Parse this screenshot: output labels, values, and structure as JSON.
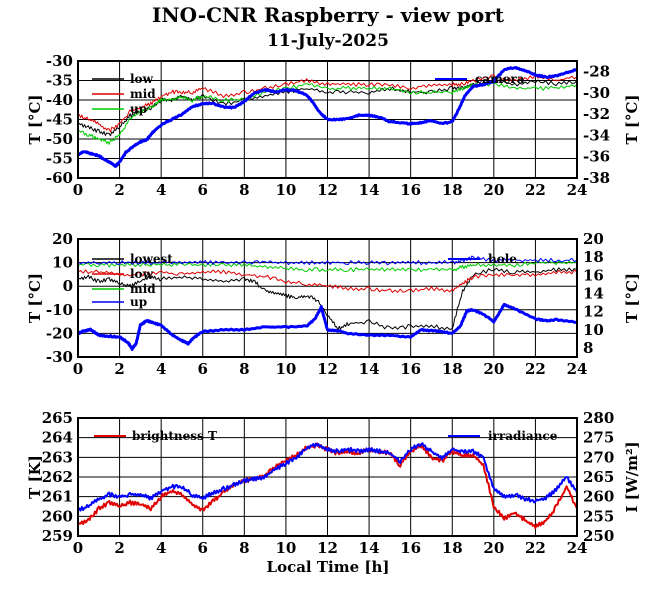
{
  "title": "INO-CNR Raspberry - view port",
  "subtitle": "11-July-2025",
  "colors": {
    "black": "#000000",
    "red": "#e00000",
    "green": "#00cc00",
    "blue": "#0000ff"
  },
  "chart_data": [
    {
      "type": "line",
      "xlim": [
        0,
        24
      ],
      "xticks": [
        0,
        2,
        4,
        6,
        8,
        10,
        12,
        14,
        16,
        18,
        20,
        22,
        24
      ],
      "ylabel": "T [°C]",
      "ylim": [
        -60,
        -30
      ],
      "yticks": [
        -60,
        -55,
        -50,
        -45,
        -40,
        -35,
        -30
      ],
      "y2label": "T [°C]",
      "y2lim": [
        -38,
        -27
      ],
      "y2ticks": [
        -38,
        -36,
        -34,
        -32,
        -30,
        -28
      ],
      "grid": true,
      "series": [
        {
          "name": "low",
          "color": "black",
          "axis": "left",
          "x": [
            0,
            0.5,
            1,
            1.5,
            2,
            2.5,
            3,
            3.5,
            4,
            4.5,
            5,
            5.5,
            6,
            7,
            8,
            9,
            10,
            11,
            12,
            13,
            14,
            15,
            16,
            17,
            18,
            18.5,
            19,
            20,
            21,
            22,
            23,
            24
          ],
          "y": [
            -46,
            -47,
            -48,
            -49,
            -47,
            -44,
            -43,
            -42,
            -40,
            -40,
            -39,
            -40,
            -39,
            -41,
            -40,
            -39,
            -38,
            -37,
            -38,
            -38,
            -38,
            -37,
            -38,
            -38,
            -37,
            -37,
            -36,
            -35,
            -36,
            -35,
            -36,
            -35
          ]
        },
        {
          "name": "mid",
          "color": "red",
          "axis": "left",
          "x": [
            0,
            0.5,
            1,
            1.5,
            2,
            2.5,
            3,
            3.5,
            4,
            4.5,
            5,
            5.5,
            6,
            7,
            8,
            9,
            10,
            11,
            12,
            13,
            14,
            15,
            16,
            17,
            18,
            18.5,
            19,
            20,
            21,
            22,
            23,
            24
          ],
          "y": [
            -44,
            -45,
            -46,
            -48,
            -46,
            -43,
            -42,
            -41,
            -39,
            -38,
            -38,
            -38,
            -37,
            -39,
            -38,
            -37,
            -36,
            -35,
            -36,
            -36,
            -36,
            -36,
            -37,
            -36,
            -36,
            -36,
            -35,
            -34,
            -35,
            -34,
            -35,
            -34
          ]
        },
        {
          "name": "up",
          "color": "green",
          "axis": "left",
          "x": [
            0,
            0.5,
            1,
            1.5,
            2,
            2.5,
            3,
            3.5,
            4,
            4.5,
            5,
            5.5,
            6,
            7,
            8,
            9,
            10,
            11,
            12,
            13,
            14,
            15,
            16,
            17,
            18,
            18.5,
            19,
            20,
            21,
            22,
            23,
            24
          ],
          "y": [
            -48,
            -49,
            -50,
            -51,
            -49,
            -45,
            -43,
            -42,
            -40,
            -40,
            -39,
            -40,
            -39,
            -40,
            -40,
            -38,
            -37,
            -36,
            -37,
            -37,
            -37,
            -37,
            -38,
            -38,
            -38,
            -37,
            -36,
            -36,
            -37,
            -37,
            -37,
            -36
          ]
        },
        {
          "name": "camera",
          "color": "blue",
          "axis": "right",
          "x": [
            0,
            0.3,
            0.6,
            1,
            1.3,
            1.6,
            1.8,
            2,
            2.3,
            2.7,
            3,
            3.3,
            3.6,
            4,
            4.5,
            5,
            5.5,
            6,
            6.5,
            7,
            7.5,
            8,
            8.5,
            9,
            9.5,
            10,
            10.5,
            11,
            11.3,
            11.6,
            12,
            12.5,
            13,
            13.5,
            14,
            14.5,
            15,
            15.5,
            16,
            16.5,
            17,
            17.5,
            18,
            18.3,
            18.6,
            19,
            19.5,
            20,
            20.5,
            21,
            21.5,
            22,
            22.5,
            23,
            23.5,
            24
          ],
          "y": [
            -35.8,
            -35.5,
            -35.7,
            -35.9,
            -36.3,
            -36.6,
            -36.9,
            -36.5,
            -35.6,
            -35,
            -34.6,
            -34.4,
            -33.7,
            -33,
            -32.5,
            -32,
            -31.3,
            -31,
            -31,
            -31.3,
            -31.4,
            -30.8,
            -30,
            -29.7,
            -29.9,
            -29.7,
            -29.8,
            -30.2,
            -30.9,
            -31.8,
            -32.5,
            -32.5,
            -32.4,
            -32.1,
            -32.1,
            -32.3,
            -32.7,
            -32.8,
            -32.9,
            -32.8,
            -32.6,
            -32.9,
            -32.7,
            -31.6,
            -30.3,
            -29.4,
            -29.2,
            -28.9,
            -27.8,
            -27.6,
            -27.9,
            -28.3,
            -28.5,
            -28.4,
            -28.1,
            -27.8
          ]
        }
      ]
    },
    {
      "type": "line",
      "xlim": [
        0,
        24
      ],
      "xticks": [
        0,
        2,
        4,
        6,
        8,
        10,
        12,
        14,
        16,
        18,
        20,
        22,
        24
      ],
      "ylabel": "T [°C]",
      "ylim": [
        -30,
        20
      ],
      "yticks": [
        -30,
        -20,
        -10,
        0,
        10,
        20
      ],
      "y2label": "T [°C]",
      "y2lim": [
        7,
        20
      ],
      "y2ticks": [
        8,
        10,
        12,
        14,
        16,
        18,
        20
      ],
      "grid": true,
      "series": [
        {
          "name": "lowest",
          "color": "black",
          "axis": "left",
          "x": [
            0,
            0.5,
            1,
            1.5,
            2,
            2.5,
            3,
            3.5,
            4,
            5,
            6,
            7,
            8,
            8.5,
            9,
            9.5,
            10,
            10.5,
            11,
            11.5,
            12,
            12.5,
            13,
            14,
            15,
            16,
            17,
            18,
            18.5,
            19,
            20,
            21,
            22,
            23,
            24
          ],
          "y": [
            3,
            4,
            2,
            3,
            1,
            0,
            2,
            4,
            3,
            4,
            3,
            2,
            3,
            2,
            -2,
            -3,
            -4,
            -5,
            -4,
            -6,
            -12,
            -18,
            -16,
            -15,
            -18,
            -17,
            -17,
            -18,
            -2,
            5,
            7,
            6,
            6,
            7,
            7
          ]
        },
        {
          "name": "low",
          "color": "red",
          "axis": "left",
          "x": [
            0,
            1,
            2,
            3,
            4,
            5,
            6,
            7,
            8,
            9,
            10,
            11,
            12,
            13,
            14,
            15,
            16,
            17,
            18,
            18.5,
            19,
            20,
            21,
            22,
            23,
            24
          ],
          "y": [
            6,
            6,
            5,
            5,
            6,
            5,
            6,
            6,
            5,
            4,
            2,
            1,
            0,
            -1,
            -1,
            -2,
            -2,
            -1,
            -2,
            1,
            4,
            5,
            5,
            5,
            6,
            6
          ]
        },
        {
          "name": "mid",
          "color": "green",
          "axis": "left",
          "x": [
            0,
            1,
            2,
            3,
            4,
            5,
            6,
            7,
            8,
            9,
            10,
            11,
            12,
            13,
            14,
            15,
            16,
            17,
            18,
            18.5,
            19,
            20,
            21,
            22,
            23,
            24
          ],
          "y": [
            9,
            9,
            9,
            9,
            9,
            9,
            9,
            9,
            9,
            8,
            8,
            7,
            7,
            7,
            7,
            7,
            7,
            7,
            7,
            8,
            9,
            9,
            9,
            10,
            10,
            10
          ]
        },
        {
          "name": "up",
          "color": "blue",
          "axis": "left",
          "x": [
            0,
            1,
            2,
            3,
            4,
            5,
            6,
            7,
            8,
            9,
            10,
            11,
            12,
            13,
            14,
            15,
            16,
            17,
            18,
            18.5,
            19,
            20,
            21,
            22,
            23,
            24
          ],
          "y": [
            10,
            10,
            10,
            10,
            10,
            10,
            10,
            10,
            10,
            10,
            10,
            10,
            10,
            10,
            10,
            10,
            10,
            10,
            10,
            11,
            12,
            11,
            11,
            11,
            11,
            11
          ]
        },
        {
          "name": "hole",
          "color": "blue",
          "axis": "right",
          "x": [
            0,
            0.3,
            0.6,
            1,
            1.5,
            2,
            2.4,
            2.6,
            2.8,
            3,
            3.3,
            3.6,
            4,
            4.5,
            5,
            5.3,
            5.6,
            6,
            7,
            8,
            9,
            10,
            11,
            11.4,
            11.7,
            12,
            12.5,
            13,
            14,
            15,
            16,
            16.5,
            17,
            17.5,
            18,
            18.4,
            18.7,
            19,
            19.5,
            20,
            20.3,
            20.5,
            21,
            22,
            22.5,
            23,
            24
          ],
          "y": [
            9.6,
            9.9,
            10,
            9.4,
            9.3,
            9.2,
            8.6,
            7.9,
            8.5,
            10.5,
            11,
            10.8,
            10.5,
            9.5,
            8.8,
            8.5,
            9.2,
            9.8,
            10,
            10,
            10.3,
            10.3,
            10.4,
            11.2,
            12.5,
            10,
            9.9,
            9.6,
            9.4,
            9.4,
            9.2,
            10,
            9.9,
            9.8,
            9.6,
            10.4,
            12.1,
            12.2,
            11.7,
            10.9,
            12,
            12.8,
            12.3,
            11.2,
            11,
            11.1,
            10.8
          ]
        }
      ]
    },
    {
      "type": "line",
      "xlim": [
        0,
        24
      ],
      "xticks": [
        0,
        2,
        4,
        6,
        8,
        10,
        12,
        14,
        16,
        18,
        20,
        22,
        24
      ],
      "xlabel": "Local Time [h]",
      "ylabel": "T [K]",
      "ylim": [
        259,
        265
      ],
      "yticks": [
        259,
        260,
        261,
        262,
        263,
        264,
        265
      ],
      "y2label": "I [W/m²]",
      "y2lim": [
        250,
        280
      ],
      "y2ticks": [
        250,
        255,
        260,
        265,
        270,
        275,
        280
      ],
      "grid": true,
      "series": [
        {
          "name": "brightness T",
          "color": "red",
          "axis": "left",
          "x": [
            0,
            0.5,
            1,
            1.5,
            2,
            2.5,
            3,
            3.5,
            4,
            4.5,
            5,
            5.5,
            6,
            6.5,
            7,
            7.5,
            8,
            8.5,
            9,
            9.5,
            10,
            10.5,
            11,
            11.5,
            12,
            12.5,
            13,
            13.5,
            14,
            14.5,
            15,
            15.5,
            16,
            16.5,
            17,
            17.5,
            18,
            18.5,
            19,
            19.5,
            20,
            20.5,
            21,
            21.5,
            22,
            22.5,
            23,
            23.5,
            24
          ],
          "y": [
            259.6,
            259.8,
            260.4,
            260.7,
            260.5,
            260.7,
            260.6,
            260.4,
            261,
            261.3,
            261.1,
            260.6,
            260.3,
            260.8,
            261.2,
            261.6,
            261.8,
            261.9,
            262.1,
            262.5,
            262.9,
            263.1,
            263.5,
            263.6,
            263.4,
            263.2,
            263.3,
            263.2,
            263.4,
            263.3,
            263.2,
            262.6,
            263.3,
            263.6,
            263,
            262.8,
            263.3,
            263.1,
            263.1,
            262.6,
            260.5,
            259.9,
            260.2,
            259.8,
            259.5,
            259.7,
            260.5,
            261.5,
            260.4
          ]
        }
      ]
    }
  ],
  "irradiance_series": {
    "name": "irradiance",
    "color": "blue",
    "x": [
      0,
      0.5,
      1,
      1.5,
      2,
      2.5,
      3,
      3.5,
      4,
      4.5,
      5,
      5.5,
      6,
      6.5,
      7,
      7.5,
      8,
      8.5,
      9,
      9.5,
      10,
      10.5,
      11,
      11.5,
      12,
      12.5,
      13,
      13.5,
      14,
      14.5,
      15,
      15.5,
      16,
      16.5,
      17,
      17.5,
      18,
      18.5,
      19,
      19.5,
      20,
      20.5,
      21,
      21.5,
      22,
      22.5,
      23,
      23.5,
      24
    ],
    "y": [
      256.5,
      257.5,
      259.5,
      260.5,
      260,
      260.5,
      260.5,
      259.5,
      261.5,
      262.5,
      262.5,
      260.5,
      259.5,
      261,
      262,
      263,
      264,
      264.5,
      265,
      267,
      268.5,
      270,
      272.5,
      273.5,
      272,
      271.5,
      272,
      271.5,
      272,
      271.5,
      271,
      269,
      272,
      273.5,
      271.5,
      270,
      272,
      271.5,
      271.5,
      270,
      262,
      260,
      260.5,
      259.5,
      259,
      259.5,
      262,
      265,
      261
    ]
  }
}
